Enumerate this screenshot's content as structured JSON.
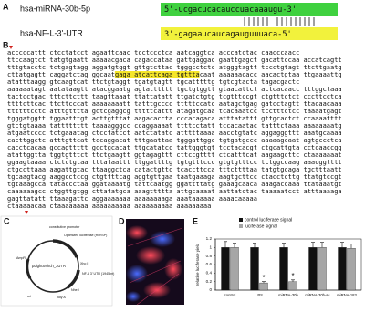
{
  "panels": {
    "A": {
      "label": "A",
      "mirna_name": "hsa-miRNA-30b-5p",
      "mirna_seq": "5'-ucgacucacauccuacaaaugu-3'",
      "utr_name": "hsa-NF-L-3'-UTR",
      "utr_seq": "3'-gagaaucaucagauguuuaca-5'"
    },
    "B": {
      "label": "B",
      "sequence": [
        "acccccattt ctcctatcct agaattcaac tcctccctca aatcaggtca acccatctac caacccaacc",
        "ttccaagtct tatgtgaatt aaaaacgaca cagaccataa gattgaggac gaattgagct gacattccaa accatcagtt",
        "tttgtacctc tctgagtagg aggatgtggt gttgtcttac tgggcctctc atgggtagtt tccctgtagt ttcttgaatg",
        "cttatgagtt caggatctag ggcaatgaga atcattcaga tgtttacaat aaaaaacacc aacactgtaa ttgaaaattg",
        "atatttaagg gtcaagtcat ttctgtaggt tgatgtagtt tgcatttttg tgtcgtacta tagacgactc",
        "aaaaaatagt aatataagtt atacggaatg agtatttttt tgctgtggtt gtaacattct actcacaacc tttggctaaa",
        "tactcctgac tttcttcttt taagttaaat ttattatatt ttgatctgtg tcgtttccgt ctgtttctct cccttcctca",
        "ttttcttcac ttcttcccat aaaaaaaatt tatttgcccc tttttccatc aatagctgag gatcctagtt ttacaacaaa",
        "ttttttcctc atttgtttta gctcgaggcg tttttcattt atagatgcaa tcacaaatcc tcctttctcc taaaatgagt",
        "tgggatggtt tggaatttgt acttgtttat aagacaccta cccacagaca atttatattt gttgcactct ccaaaatttt",
        "gtctgtaaaa tatttttttt taaaagggcc ccaggaaaat ttttcctatt tccacaatac tatttctaaa aaaaaaaatg",
        "atgaatcccc tctgaaatag ctcctatcct aatctatatc atttttaaaa aacctgtatc aggagggttt aaatgcaaaa",
        "cacttggctc atttgttcat tccaggacat tttgaattaa tgggattggc tgtgatgccc aaaaagcaat agtgccctca",
        "cacctcacaa gccagttttt gcctgcacat ttgcatatcc tattgggtgt tcctacacgt ctgcattgta cctcaaccgg",
        "atattggtta tggtgtttct ttctgaagtt ggtagagttt cttccgtttt ctcatttcat aagaagcttc ctaaaaaaat",
        "ggaagtaaaa ctctctgtaa tttataattt ttggattttg tgtgtttccc gtgtgtttcc tctggccaag aaacggtttt",
        "ctgccttaaa aagattgtac ttaaggctca catactgttc tcaccttcca tttcttttaa tatgtgcaga tgctttaatt",
        "tgcaagtacg aaggcctccg ctgttttcag aggtgttgaa taatgaaaga aagtgcttcc ctacctcttg ttatgtccgt",
        "tgtaaagcca tataccctaa ggataaaatg tattcaatgg ggattttatg gaaagcaaca aaagaccaaa ttataaatgt",
        "caaaaaagcc ctggttgtgg cttatatgca aaagttttta attgcaaaat aattatctac taaaaatcct atttaaaaga",
        "gagttatatt ttaaagattc aggaaaaaaa aaaaaaaaga aaataaaaaa aaaacaaaaa",
        "ctaaaaacaa ctaaaaaaaa aaaaaaaaaa aaaaaaaaaa aaaaaaaaa"
      ]
    },
    "C": {
      "label": "C",
      "labels": [
        "constitutive promoter",
        "Optimized luciferase (RenSP)",
        "NF-L 3' UTR (1945 nt)",
        "pLightSwitch_3UTR",
        "AmpR",
        "ori",
        "poly A",
        "Xho I",
        "Nhe I"
      ]
    },
    "D": {
      "label": "D"
    }
  },
  "chart_data": {
    "type": "bar",
    "panel_label": "E",
    "y_label": "relative luciferase yield",
    "categories": [
      "control",
      "LPS",
      "miRNA-30b",
      "miRNA-30b-sc",
      "miRNA-183"
    ],
    "series": [
      {
        "name": "control luciferase signal",
        "color": "#111111",
        "values": [
          1,
          1,
          1,
          1,
          1
        ],
        "errors": [
          0.14,
          0.1,
          0.1,
          0.12,
          0.12
        ]
      },
      {
        "name": "luciferase signal",
        "color": "#a6a6a6",
        "values": [
          1,
          0.17,
          0.2,
          1,
          0.98
        ],
        "errors": [
          0.1,
          0.03,
          0.04,
          0.12,
          0.1
        ]
      }
    ],
    "significance": [
      null,
      "*",
      "*",
      null,
      null
    ],
    "ylim": [
      0,
      1.2
    ],
    "yticks": [
      0,
      0.2,
      0.4,
      0.6,
      0.8,
      1,
      1.2
    ]
  }
}
